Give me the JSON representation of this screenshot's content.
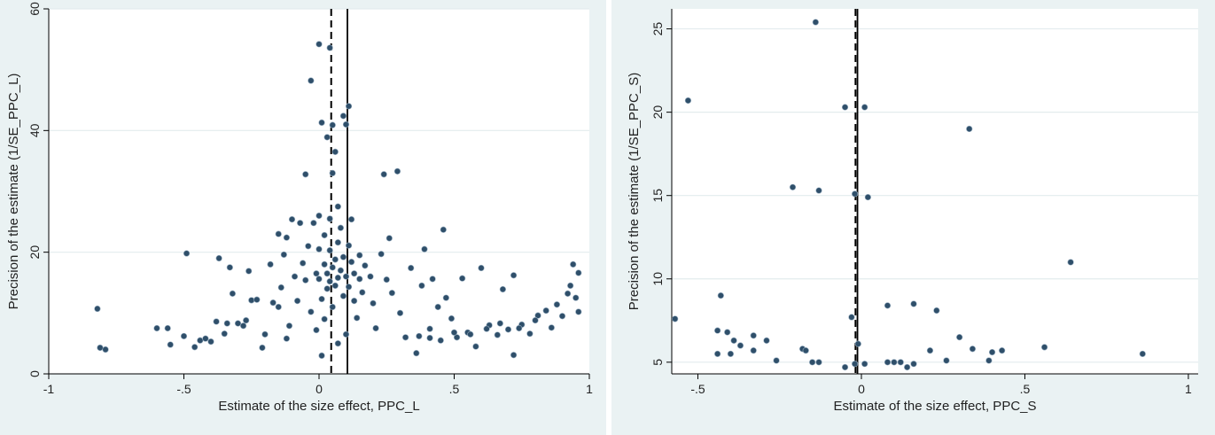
{
  "colors": {
    "background": "#eaf2f3",
    "plot_area": "#ffffff",
    "gridline": "#e3ecee",
    "marker": "#2f4f6a",
    "line": "#000000"
  },
  "chart_data": [
    {
      "type": "scatter",
      "title": "",
      "xlabel": "Estimate of the size effect, PPC_L",
      "ylabel": "Precision of the estimate (1/SE_PPC_L)",
      "xlim": [
        -1.0,
        1.0
      ],
      "ylim": [
        0,
        60
      ],
      "xticks": [
        -1,
        -0.5,
        0,
        0.5,
        1
      ],
      "xtick_labels": [
        "-1",
        "-.5",
        "0",
        ".5",
        "1"
      ],
      "yticks": [
        0,
        20,
        40,
        60
      ],
      "ytick_labels": [
        "0",
        "20",
        "40",
        "60"
      ],
      "grid": true,
      "vlines": [
        {
          "x": 0.045,
          "style": "dashed"
        },
        {
          "x": 0.105,
          "style": "solid"
        }
      ],
      "points": [
        [
          -0.82,
          10.7
        ],
        [
          -0.81,
          4.3
        ],
        [
          -0.79,
          4.0
        ],
        [
          -0.6,
          7.5
        ],
        [
          -0.56,
          7.5
        ],
        [
          -0.55,
          4.8
        ],
        [
          -0.49,
          19.8
        ],
        [
          -0.46,
          4.4
        ],
        [
          -0.44,
          5.5
        ],
        [
          -0.42,
          5.8
        ],
        [
          -0.4,
          5.3
        ],
        [
          -0.38,
          8.6
        ],
        [
          -0.37,
          19.0
        ],
        [
          -0.35,
          6.6
        ],
        [
          -0.33,
          17.5
        ],
        [
          -0.32,
          13.2
        ],
        [
          -0.3,
          8.3
        ],
        [
          -0.28,
          7.9
        ],
        [
          -0.26,
          16.9
        ],
        [
          -0.25,
          12.1
        ],
        [
          -0.23,
          12.2
        ],
        [
          -0.21,
          4.3
        ],
        [
          -0.2,
          6.5
        ],
        [
          -0.18,
          18.0
        ],
        [
          -0.17,
          11.7
        ],
        [
          -0.15,
          23.0
        ],
        [
          -0.14,
          14.2
        ],
        [
          -0.13,
          19.6
        ],
        [
          -0.12,
          22.4
        ],
        [
          -0.11,
          7.9
        ],
        [
          -0.1,
          25.4
        ],
        [
          -0.09,
          16.0
        ],
        [
          -0.08,
          12.0
        ],
        [
          -0.07,
          24.8
        ],
        [
          -0.06,
          18.2
        ],
        [
          -0.05,
          15.4
        ],
        [
          -0.05,
          32.8
        ],
        [
          -0.04,
          21.0
        ],
        [
          -0.03,
          48.2
        ],
        [
          -0.03,
          10.2
        ],
        [
          -0.02,
          24.8
        ],
        [
          -0.01,
          16.5
        ],
        [
          -0.01,
          7.2
        ],
        [
          0.0,
          54.2
        ],
        [
          0.0,
          26.0
        ],
        [
          0.0,
          20.5
        ],
        [
          0.0,
          15.6
        ],
        [
          0.01,
          41.3
        ],
        [
          0.01,
          12.3
        ],
        [
          0.01,
          3.0
        ],
        [
          0.02,
          22.8
        ],
        [
          0.02,
          18.0
        ],
        [
          0.02,
          9.0
        ],
        [
          0.03,
          38.9
        ],
        [
          0.03,
          16.5
        ],
        [
          0.03,
          14.0
        ],
        [
          0.04,
          53.6
        ],
        [
          0.04,
          25.5
        ],
        [
          0.04,
          20.3
        ],
        [
          0.04,
          15.2
        ],
        [
          0.05,
          40.9
        ],
        [
          0.05,
          33.0
        ],
        [
          0.05,
          17.5
        ],
        [
          0.05,
          11.0
        ],
        [
          0.06,
          36.5
        ],
        [
          0.06,
          18.8
        ],
        [
          0.06,
          14.5
        ],
        [
          0.07,
          27.5
        ],
        [
          0.07,
          21.6
        ],
        [
          0.07,
          15.8
        ],
        [
          0.07,
          5.0
        ],
        [
          0.08,
          24.0
        ],
        [
          0.08,
          17.0
        ],
        [
          0.09,
          42.4
        ],
        [
          0.09,
          19.2
        ],
        [
          0.09,
          12.8
        ],
        [
          0.1,
          41.0
        ],
        [
          0.1,
          16.0
        ],
        [
          0.1,
          6.5
        ],
        [
          0.11,
          44.0
        ],
        [
          0.11,
          21.1
        ],
        [
          0.11,
          14.3
        ],
        [
          0.12,
          25.4
        ],
        [
          0.12,
          18.4
        ],
        [
          0.13,
          16.5
        ],
        [
          0.13,
          12.0
        ],
        [
          0.14,
          9.2
        ],
        [
          0.15,
          15.6
        ],
        [
          0.16,
          13.4
        ],
        [
          0.17,
          17.8
        ],
        [
          0.19,
          16.0
        ],
        [
          0.2,
          11.6
        ],
        [
          0.21,
          7.5
        ],
        [
          0.23,
          19.7
        ],
        [
          0.24,
          32.8
        ],
        [
          0.25,
          15.5
        ],
        [
          0.26,
          22.3
        ],
        [
          0.27,
          13.3
        ],
        [
          0.29,
          33.3
        ],
        [
          0.3,
          10.0
        ],
        [
          0.32,
          6.0
        ],
        [
          0.34,
          17.4
        ],
        [
          0.36,
          3.4
        ],
        [
          0.38,
          14.5
        ],
        [
          0.39,
          20.5
        ],
        [
          0.41,
          7.4
        ],
        [
          0.42,
          15.6
        ],
        [
          0.44,
          11.0
        ],
        [
          0.46,
          23.7
        ],
        [
          0.47,
          12.5
        ],
        [
          0.49,
          9.1
        ],
        [
          0.51,
          6.0
        ],
        [
          0.53,
          15.7
        ],
        [
          0.55,
          6.8
        ],
        [
          0.58,
          4.5
        ],
        [
          0.6,
          17.4
        ],
        [
          0.63,
          8.0
        ],
        [
          0.66,
          6.4
        ],
        [
          0.68,
          13.9
        ],
        [
          0.7,
          7.3
        ],
        [
          0.72,
          16.2
        ],
        [
          0.72,
          3.1
        ],
        [
          0.75,
          8.1
        ],
        [
          0.78,
          6.6
        ],
        [
          0.81,
          9.6
        ],
        [
          0.84,
          10.4
        ],
        [
          0.86,
          7.6
        ],
        [
          0.88,
          11.4
        ],
        [
          0.9,
          9.5
        ],
        [
          0.92,
          13.2
        ],
        [
          0.93,
          14.5
        ],
        [
          0.94,
          18.0
        ],
        [
          0.95,
          12.5
        ],
        [
          0.96,
          16.6
        ],
        [
          0.96,
          10.2
        ],
        [
          -0.15,
          11.0
        ],
        [
          -0.27,
          8.8
        ],
        [
          -0.34,
          8.3
        ],
        [
          -0.5,
          6.2
        ],
        [
          -0.12,
          5.8
        ],
        [
          0.37,
          6.2
        ],
        [
          0.41,
          5.9
        ],
        [
          0.45,
          5.5
        ],
        [
          0.5,
          6.8
        ],
        [
          0.56,
          6.5
        ],
        [
          0.62,
          7.4
        ],
        [
          0.67,
          8.3
        ],
        [
          0.74,
          7.5
        ],
        [
          0.8,
          8.8
        ],
        [
          0.15,
          19.5
        ]
      ]
    },
    {
      "type": "scatter",
      "title": "",
      "xlabel": "Estimate of the size effect, PPC_S",
      "ylabel": "Precision of the estimate (1/SE_PPC_S)",
      "xlim": [
        -0.58,
        1.03
      ],
      "ylim": [
        4.3,
        26.2
      ],
      "xticks": [
        -0.5,
        0,
        0.5,
        1
      ],
      "xtick_labels": [
        "-.5",
        "0",
        ".5",
        "1"
      ],
      "yticks": [
        5,
        10,
        15,
        20,
        25
      ],
      "ytick_labels": [
        "5",
        "10",
        "15",
        "20",
        "25"
      ],
      "grid": true,
      "vlines": [
        {
          "x": -0.018,
          "style": "dashed"
        },
        {
          "x": -0.012,
          "style": "solid"
        }
      ],
      "points": [
        [
          -0.57,
          7.6
        ],
        [
          -0.53,
          20.7
        ],
        [
          -0.44,
          6.9
        ],
        [
          -0.43,
          9.0
        ],
        [
          -0.44,
          5.5
        ],
        [
          -0.41,
          6.8
        ],
        [
          -0.4,
          5.5
        ],
        [
          -0.39,
          6.3
        ],
        [
          -0.37,
          6.0
        ],
        [
          -0.33,
          6.6
        ],
        [
          -0.33,
          5.7
        ],
        [
          -0.29,
          6.3
        ],
        [
          -0.26,
          5.1
        ],
        [
          -0.21,
          15.5
        ],
        [
          -0.18,
          5.8
        ],
        [
          -0.17,
          5.7
        ],
        [
          -0.15,
          5.0
        ],
        [
          -0.14,
          25.4
        ],
        [
          -0.13,
          5.0
        ],
        [
          -0.13,
          15.3
        ],
        [
          -0.05,
          20.3
        ],
        [
          -0.05,
          4.7
        ],
        [
          -0.03,
          7.7
        ],
        [
          -0.02,
          15.1
        ],
        [
          -0.02,
          4.9
        ],
        [
          -0.01,
          6.1
        ],
        [
          0.01,
          20.3
        ],
        [
          0.01,
          4.9
        ],
        [
          0.02,
          14.9
        ],
        [
          0.08,
          8.4
        ],
        [
          0.08,
          5.0
        ],
        [
          0.1,
          5.0
        ],
        [
          0.12,
          5.0
        ],
        [
          0.14,
          4.7
        ],
        [
          0.16,
          8.5
        ],
        [
          0.16,
          4.9
        ],
        [
          0.21,
          5.7
        ],
        [
          0.23,
          8.1
        ],
        [
          0.26,
          5.1
        ],
        [
          0.3,
          6.5
        ],
        [
          0.33,
          19.0
        ],
        [
          0.34,
          5.8
        ],
        [
          0.39,
          5.1
        ],
        [
          0.4,
          5.6
        ],
        [
          0.43,
          5.7
        ],
        [
          0.56,
          5.9
        ],
        [
          0.64,
          11.0
        ],
        [
          0.86,
          5.5
        ]
      ]
    }
  ]
}
